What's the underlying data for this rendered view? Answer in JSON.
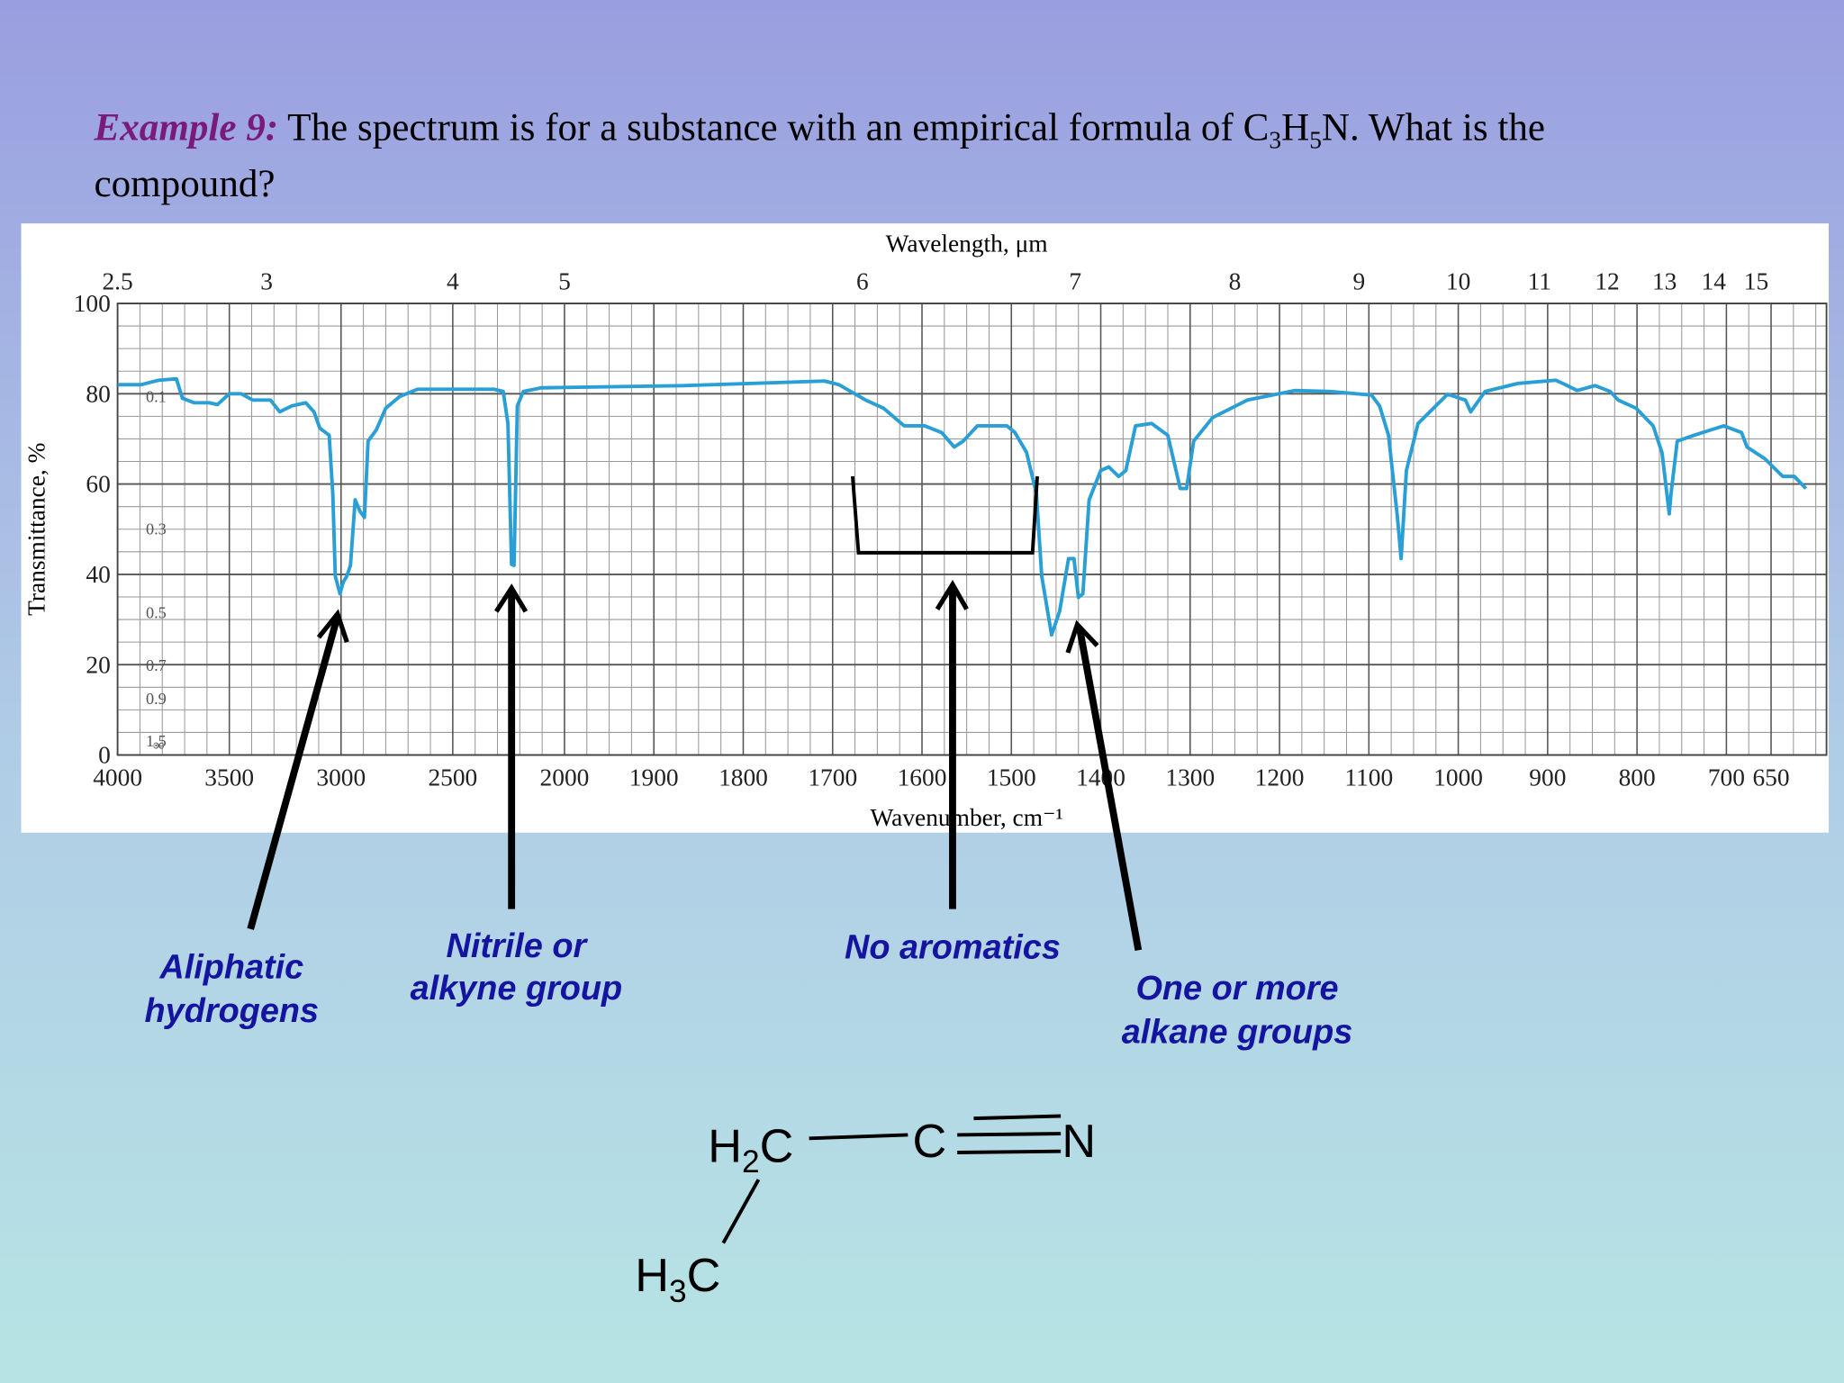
{
  "title": {
    "label": "Example 9:",
    "text_before": " The spectrum is for a substance with an empirical formula of ",
    "formula": [
      "C",
      "3",
      "H",
      "5",
      "N"
    ],
    "text_after": ". What is the",
    "line2": "compound?"
  },
  "chart_data": {
    "type": "line",
    "color": "#2a9fd6",
    "top_axis_label": "Wavelength, μm",
    "xlabel": "Wavenumber, cm⁻¹",
    "ylabel": "Transmittance, %",
    "xlim": [
      4000,
      588
    ],
    "ylim": [
      0,
      100
    ],
    "xticks": [
      4000,
      3500,
      3000,
      2500,
      2000,
      1900,
      1800,
      1700,
      1600,
      1500,
      1400,
      1300,
      1200,
      1100,
      1000,
      900,
      800,
      700,
      650
    ],
    "yticks": [
      0,
      20,
      40,
      60,
      80,
      100
    ],
    "wavelength_ticks": [
      2.5,
      3,
      4,
      5,
      6,
      7,
      8,
      9,
      10,
      11,
      12,
      13,
      14,
      15
    ],
    "absorbance_ticks": [
      0.1,
      0.3,
      0.5,
      0.7,
      0.9,
      1.5
    ],
    "absorbance_infinity_label": "∞",
    "grid": true,
    "x": [
      4000,
      3895,
      3816,
      3737,
      3710,
      3658,
      3590,
      3553,
      3500,
      3447,
      3395,
      3316,
      3274,
      3221,
      3158,
      3121,
      3095,
      3053,
      3037,
      3026,
      3005,
      2990,
      2974,
      2958,
      2937,
      2916,
      2895,
      2879,
      2842,
      2800,
      2737,
      2658,
      2421,
      2316,
      2274,
      2253,
      2237,
      2226,
      2211,
      2184,
      2105,
      1867,
      1709,
      1693,
      1663,
      1643,
      1620,
      1597,
      1578,
      1564,
      1554,
      1538,
      1505,
      1496,
      1483,
      1472,
      1466,
      1455,
      1446,
      1436,
      1430,
      1425,
      1420,
      1413,
      1400,
      1391,
      1380,
      1372,
      1361,
      1343,
      1325,
      1311,
      1304,
      1296,
      1275,
      1236,
      1183,
      1143,
      1097,
      1088,
      1078,
      1068,
      1064,
      1058,
      1045,
      1012,
      992,
      986,
      970,
      933,
      891,
      880,
      867,
      847,
      830,
      821,
      801,
      782,
      772,
      764,
      762,
      755,
      736,
      703,
      683,
      677,
      657,
      637,
      624,
      611
    ],
    "values": [
      82,
      82,
      83,
      83.3,
      79,
      78,
      78,
      77.6,
      80,
      80,
      78.6,
      78.6,
      76,
      77.3,
      78,
      76,
      72.4,
      70.8,
      57.8,
      39.6,
      35.7,
      38.3,
      39.6,
      42,
      56.5,
      54,
      52.6,
      69.5,
      72,
      76.8,
      79.4,
      81,
      81,
      81,
      80.5,
      73.4,
      42.2,
      42,
      77.3,
      80.5,
      81.3,
      81.8,
      82.8,
      82,
      78.6,
      76.8,
      72.9,
      72.9,
      71.4,
      68.2,
      69.5,
      72.9,
      72.9,
      71.4,
      67,
      57.8,
      39.6,
      26.6,
      31.8,
      43.5,
      43.5,
      34.9,
      35.7,
      56.5,
      63,
      63.8,
      61.7,
      63,
      72.9,
      73.4,
      70.8,
      59,
      59,
      69.5,
      74.7,
      78.6,
      80.7,
      80.5,
      79.7,
      77.3,
      70.8,
      52.6,
      43.5,
      63,
      73.4,
      79.9,
      78.6,
      76,
      80.5,
      82.3,
      83,
      82,
      80.7,
      81.8,
      80.5,
      78.6,
      76.8,
      72.9,
      66.9,
      53.4,
      57.8,
      69.5,
      70.8,
      72.9,
      71.4,
      68.2,
      65.6,
      61.7,
      61.7,
      59
    ]
  },
  "annotations": {
    "aliphatic": [
      "Aliphatic",
      "hydrogens"
    ],
    "nitrile": [
      "Nitrile or",
      "alkyne group"
    ],
    "aromatics": [
      "No aromatics"
    ],
    "alkane": [
      "One or more",
      "alkane groups"
    ]
  },
  "molecule": {
    "ch2": [
      "H",
      "2",
      "C"
    ],
    "ch3": [
      "H",
      "3",
      "C"
    ],
    "c": "C",
    "n": "N"
  }
}
